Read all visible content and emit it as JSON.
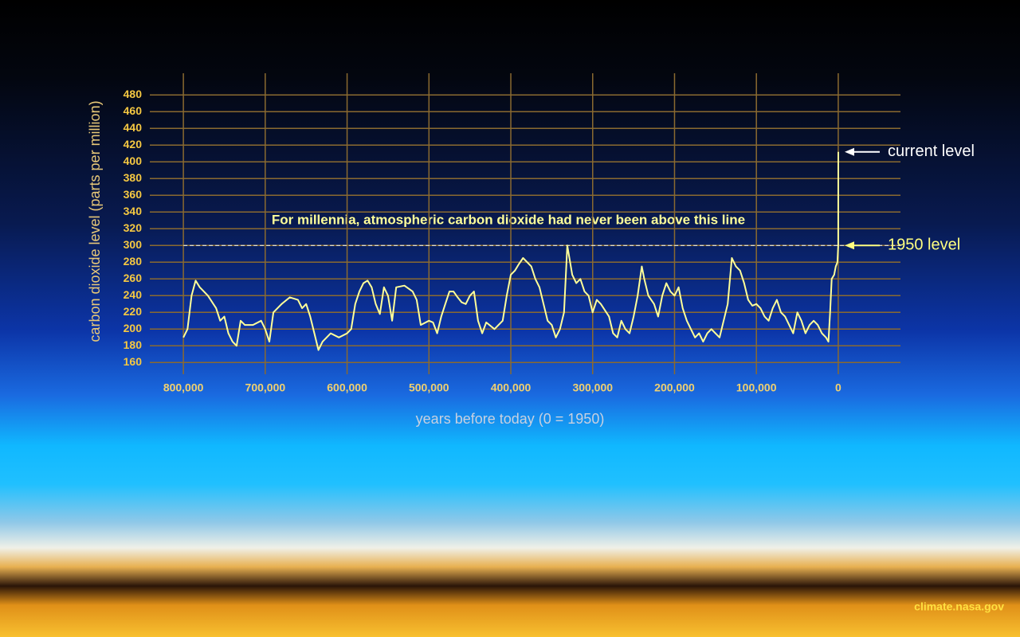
{
  "chart_data": {
    "type": "line",
    "x_label": "years before today (0 = 1950)",
    "y_label": "carbon dioxide level (parts per million)",
    "xlim": [
      841000,
      -76000
    ],
    "ylim": [
      146,
      506
    ],
    "xticks": [
      {
        "value": 800000,
        "label": "800,000"
      },
      {
        "value": 700000,
        "label": "700,000"
      },
      {
        "value": 600000,
        "label": "600,000"
      },
      {
        "value": 500000,
        "label": "500,000"
      },
      {
        "value": 400000,
        "label": "400,000"
      },
      {
        "value": 300000,
        "label": "300,000"
      },
      {
        "value": 200000,
        "label": "200,000"
      },
      {
        "value": 100000,
        "label": "100,000"
      },
      0
    ],
    "yticks": [
      160,
      180,
      200,
      220,
      240,
      260,
      280,
      300,
      320,
      340,
      360,
      380,
      400,
      420,
      440,
      460,
      480
    ],
    "grid": true,
    "reference_line": {
      "text": "For millennia, atmospheric carbon dioxide had never been above this line",
      "y": 300
    },
    "annotations": [
      {
        "text": "current level",
        "y": 412,
        "color": "#ffffff"
      },
      {
        "text": "1950 level",
        "y": 300,
        "color": "#ffff80"
      }
    ],
    "credit": "climate.nasa.gov",
    "series": [
      {
        "color": "#ffff99",
        "x": [
          800000,
          795000,
          790000,
          785000,
          780000,
          770000,
          760000,
          755000,
          750000,
          745000,
          740000,
          735000,
          730000,
          725000,
          715000,
          705000,
          700000,
          695000,
          690000,
          680000,
          670000,
          660000,
          655000,
          650000,
          645000,
          640000,
          635000,
          630000,
          620000,
          610000,
          600000,
          595000,
          590000,
          585000,
          580000,
          575000,
          570000,
          565000,
          560000,
          555000,
          550000,
          545000,
          540000,
          530000,
          520000,
          515000,
          510000,
          500000,
          495000,
          490000,
          485000,
          480000,
          475000,
          470000,
          465000,
          460000,
          455000,
          450000,
          445000,
          440000,
          435000,
          430000,
          420000,
          410000,
          405000,
          400000,
          395000,
          390000,
          385000,
          380000,
          375000,
          370000,
          365000,
          360000,
          355000,
          350000,
          345000,
          340000,
          335000,
          331000,
          325000,
          320000,
          315000,
          310000,
          305000,
          300000,
          295000,
          290000,
          280000,
          275000,
          270000,
          265000,
          260000,
          255000,
          250000,
          245000,
          240000,
          237000,
          232000,
          225000,
          220000,
          215000,
          210000,
          205000,
          200000,
          195000,
          190000,
          185000,
          180000,
          175000,
          170000,
          165000,
          160000,
          155000,
          150000,
          145000,
          135000,
          130000,
          125000,
          120000,
          115000,
          110000,
          105000,
          100000,
          95000,
          90000,
          85000,
          80000,
          75000,
          70000,
          65000,
          60000,
          55000,
          50000,
          45000,
          40000,
          35000,
          30000,
          25000,
          20000,
          15000,
          12000,
          10000,
          8000,
          5000,
          3000,
          1000,
          0,
          -70
        ],
        "values": [
          190,
          200,
          240,
          258,
          250,
          240,
          225,
          210,
          215,
          195,
          185,
          180,
          210,
          205,
          205,
          210,
          200,
          185,
          220,
          230,
          238,
          235,
          225,
          230,
          215,
          195,
          175,
          185,
          195,
          190,
          195,
          200,
          230,
          245,
          255,
          258,
          250,
          230,
          218,
          250,
          240,
          210,
          250,
          252,
          245,
          235,
          205,
          210,
          208,
          195,
          215,
          230,
          245,
          245,
          238,
          232,
          230,
          240,
          245,
          210,
          195,
          208,
          200,
          210,
          240,
          265,
          270,
          278,
          285,
          280,
          275,
          260,
          250,
          230,
          210,
          205,
          190,
          200,
          220,
          300,
          265,
          255,
          260,
          245,
          240,
          220,
          235,
          230,
          215,
          195,
          190,
          210,
          200,
          195,
          215,
          240,
          275,
          260,
          240,
          230,
          215,
          240,
          255,
          245,
          240,
          250,
          225,
          210,
          200,
          190,
          195,
          185,
          195,
          200,
          195,
          190,
          230,
          285,
          275,
          270,
          255,
          235,
          228,
          230,
          225,
          215,
          210,
          225,
          235,
          220,
          215,
          205,
          195,
          220,
          210,
          195,
          205,
          210,
          205,
          195,
          190,
          185,
          220,
          260,
          265,
          275,
          280,
          300,
          412
        ]
      }
    ]
  }
}
